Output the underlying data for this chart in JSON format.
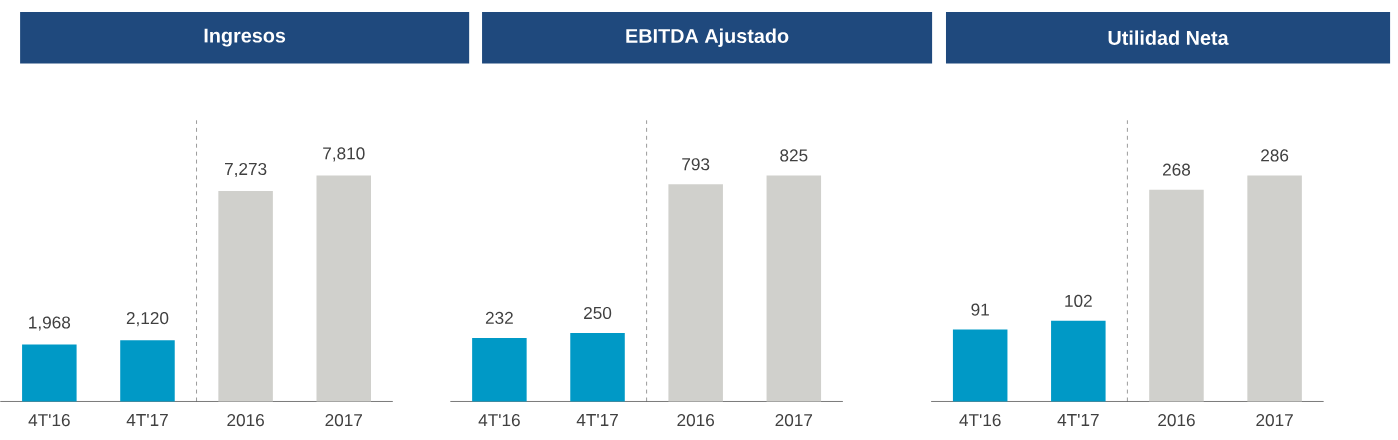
{
  "chart_data": [
    {
      "type": "bar",
      "title": "Ingresos",
      "categories": [
        "4T'16",
        "4T'17",
        "2016",
        "2017"
      ],
      "values": [
        1968,
        2120,
        7273,
        7810
      ],
      "value_labels": [
        "1,968",
        "2,120",
        "7,273",
        "7,810"
      ],
      "colors": [
        "#0099c6",
        "#0099c6",
        "#d0d0cc",
        "#d0d0cc"
      ],
      "tick_labels": "x"
    },
    {
      "type": "bar",
      "title": "EBITDA Ajustado",
      "categories": [
        "4T'16",
        "4T'17",
        "2016",
        "2017"
      ],
      "values": [
        232,
        250,
        793,
        825
      ],
      "data_labels": true,
      "colors": [
        "#0099c6",
        "#0099c6",
        "#d0d0cc",
        "#d0d0cc"
      ],
      "tick_labels": "x"
    },
    {
      "type": "bar",
      "title": "Utilidad Neta",
      "categories": [
        "4T'16",
        "4T'17",
        "2016",
        "2017"
      ],
      "values": [
        91,
        102,
        268,
        286
      ],
      "data_labels": true,
      "colors": [
        "#0099c6",
        "#0099c6",
        "#d0d0cc",
        "#d0d0cc"
      ],
      "tick_labels": "x"
    }
  ]
}
